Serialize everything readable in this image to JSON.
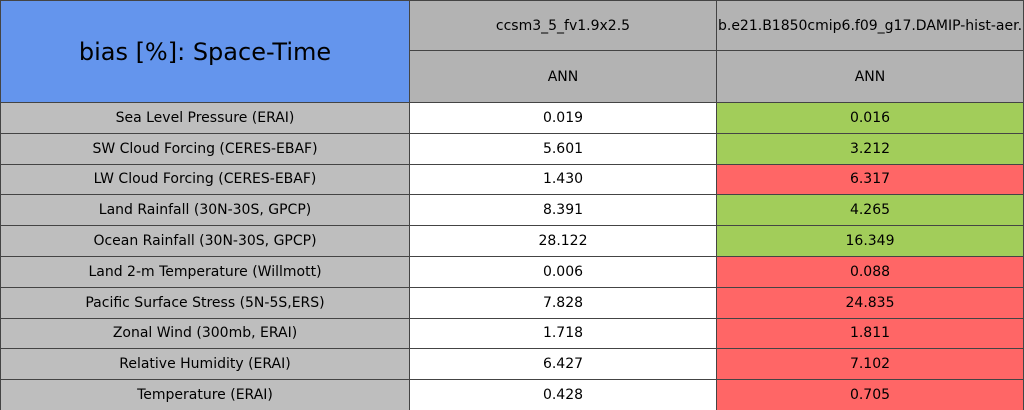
{
  "header": {
    "title": "bias [%]: Space-Time",
    "columns": [
      "ccsm3_5_fv1.9x2.5",
      "b.e21.B1850cmip6.f09_g17.DAMIP-hist-aer."
    ],
    "subheaders": [
      "ANN",
      "ANN"
    ]
  },
  "table": {
    "rows": [
      [
        "Sea Level Pressure (ERAI)",
        "0.019",
        "0.016"
      ],
      [
        "SW Cloud Forcing (CERES-EBAF)",
        "5.601",
        "3.212"
      ],
      [
        "LW Cloud Forcing (CERES-EBAF)",
        "1.430",
        "6.317"
      ],
      [
        "Land Rainfall (30N-30S, GPCP)",
        "8.391",
        "4.265"
      ],
      [
        "Ocean Rainfall (30N-30S, GPCP)",
        "28.122",
        "16.349"
      ],
      [
        "Land 2-m Temperature (Willmott)",
        "0.006",
        "0.088"
      ],
      [
        "Pacific Surface Stress (5N-5S,ERS)",
        "7.828",
        "24.835"
      ],
      [
        "Zonal Wind (300mb, ERAI)",
        "1.718",
        "1.811"
      ],
      [
        "Relative Humidity (ERAI)",
        "6.427",
        "7.102"
      ],
      [
        "Temperature (ERAI)",
        "0.428",
        "0.705"
      ]
    ],
    "colors": [
      [
        "#ffffff",
        "#a2cd5a"
      ],
      [
        "#ffffff",
        "#a2cd5a"
      ],
      [
        "#ffffff",
        "#ff6666"
      ],
      [
        "#ffffff",
        "#a2cd5a"
      ],
      [
        "#ffffff",
        "#a2cd5a"
      ],
      [
        "#ffffff",
        "#ff6666"
      ],
      [
        "#ffffff",
        "#ff6666"
      ],
      [
        "#ffffff",
        "#ff6666"
      ],
      [
        "#ffffff",
        "#ff6666"
      ],
      [
        "#ffffff",
        "#ff6666"
      ]
    ]
  }
}
